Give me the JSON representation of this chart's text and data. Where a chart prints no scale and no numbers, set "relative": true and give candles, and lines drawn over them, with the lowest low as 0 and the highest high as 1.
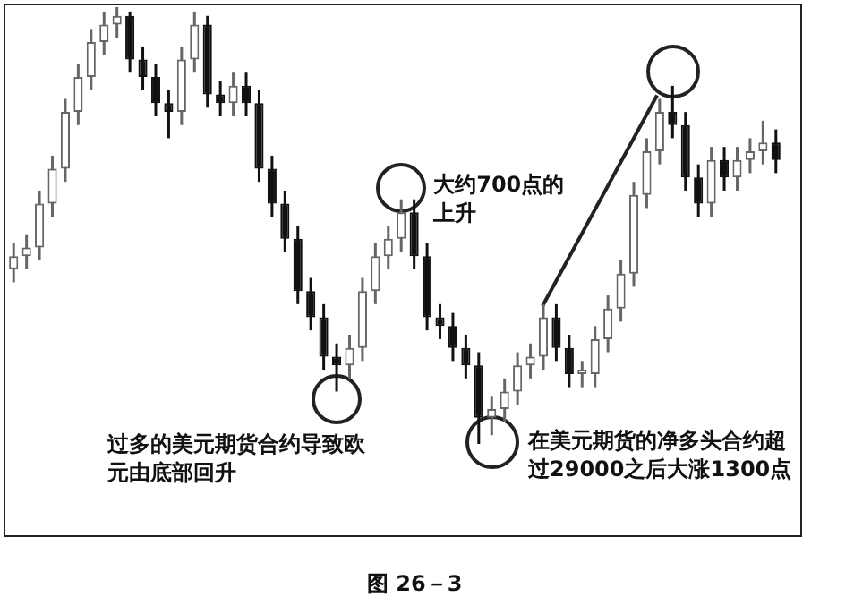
{
  "chart_data": {
    "type": "candlestick",
    "relative": true,
    "colors": [
      "#666666",
      "#666666",
      "#666666",
      "#666666",
      "#666666",
      "#666666",
      "#666666",
      "#666666",
      "#666666",
      "#111111",
      "#111111",
      "#111111",
      "#111111",
      "#666666",
      "#666666",
      "#111111",
      "#111111",
      "#666666",
      "#111111",
      "#111111",
      "#111111",
      "#111111",
      "#111111",
      "#111111",
      "#111111",
      "#111111",
      "#666666",
      "#666666",
      "#666666",
      "#666666",
      "#666666",
      "#111111",
      "#111111",
      "#111111",
      "#111111",
      "#111111",
      "#111111",
      "#666666",
      "#666666",
      "#666666",
      "#666666",
      "#666666",
      "#111111",
      "#111111",
      "#666666",
      "#666666",
      "#666666",
      "#666666",
      "#666666",
      "#666666",
      "#666666",
      "#111111",
      "#111111",
      "#111111",
      "#666666",
      "#111111",
      "#666666",
      "#666666",
      "#666666",
      "#111111"
    ],
    "legend": false,
    "categories": [
      null,
      null,
      null,
      null,
      null,
      null,
      null,
      null,
      null,
      null,
      null,
      null,
      null,
      null,
      null,
      null,
      null,
      null,
      null,
      null,
      null,
      null,
      null,
      null,
      null,
      null,
      null,
      null,
      null,
      null,
      null,
      null,
      null,
      null,
      null,
      null,
      null,
      null,
      null,
      null,
      null,
      null,
      null,
      null,
      null,
      null,
      null,
      null,
      null,
      null,
      null,
      null,
      null,
      null,
      null,
      null,
      null,
      null,
      null,
      null
    ],
    "ohlc": [
      [
        0.4,
        0.46,
        0.37,
        0.43
      ],
      [
        0.43,
        0.48,
        0.4,
        0.45
      ],
      [
        0.45,
        0.58,
        0.42,
        0.55
      ],
      [
        0.55,
        0.66,
        0.52,
        0.63
      ],
      [
        0.63,
        0.79,
        0.6,
        0.76
      ],
      [
        0.76,
        0.87,
        0.73,
        0.84
      ],
      [
        0.84,
        0.95,
        0.81,
        0.92
      ],
      [
        0.92,
        0.99,
        0.89,
        0.96
      ],
      [
        0.96,
        1,
        0.93,
        0.98
      ],
      [
        0.98,
        0.99,
        0.85,
        0.88
      ],
      [
        0.88,
        0.91,
        0.81,
        0.84
      ],
      [
        0.84,
        0.87,
        0.75,
        0.78
      ],
      [
        0.78,
        0.81,
        0.7,
        0.76
      ],
      [
        0.76,
        0.91,
        0.73,
        0.88
      ],
      [
        0.88,
        0.99,
        0.85,
        0.96
      ],
      [
        0.96,
        0.98,
        0.77,
        0.8
      ],
      [
        0.8,
        0.83,
        0.75,
        0.78
      ],
      [
        0.78,
        0.85,
        0.75,
        0.82
      ],
      [
        0.82,
        0.85,
        0.75,
        0.78
      ],
      [
        0.78,
        0.81,
        0.6,
        0.63
      ],
      [
        0.63,
        0.66,
        0.52,
        0.55
      ],
      [
        0.55,
        0.58,
        0.44,
        0.47
      ],
      [
        0.47,
        0.5,
        0.32,
        0.35
      ],
      [
        0.35,
        0.38,
        0.26,
        0.29
      ],
      [
        0.29,
        0.32,
        0.17,
        0.2
      ],
      [
        0.2,
        0.23,
        0.12,
        0.18
      ],
      [
        0.18,
        0.25,
        0.15,
        0.22
      ],
      [
        0.22,
        0.38,
        0.19,
        0.35
      ],
      [
        0.35,
        0.46,
        0.32,
        0.43
      ],
      [
        0.43,
        0.5,
        0.4,
        0.47
      ],
      [
        0.47,
        0.56,
        0.44,
        0.53
      ],
      [
        0.53,
        0.56,
        0.4,
        0.43
      ],
      [
        0.43,
        0.46,
        0.26,
        0.29
      ],
      [
        0.29,
        0.32,
        0.24,
        0.27
      ],
      [
        0.27,
        0.3,
        0.19,
        0.22
      ],
      [
        0.22,
        0.25,
        0.15,
        0.18
      ],
      [
        0.18,
        0.21,
        0,
        0.06
      ],
      [
        0.06,
        0.11,
        0.02,
        0.08
      ],
      [
        0.08,
        0.15,
        0.05,
        0.12
      ],
      [
        0.12,
        0.21,
        0.09,
        0.18
      ],
      [
        0.18,
        0.23,
        0.15,
        0.2
      ],
      [
        0.2,
        0.32,
        0.17,
        0.29
      ],
      [
        0.29,
        0.32,
        0.19,
        0.22
      ],
      [
        0.22,
        0.25,
        0.13,
        0.16
      ],
      [
        0.16,
        0.19,
        0.13,
        0.17
      ],
      [
        0.16,
        0.27,
        0.13,
        0.24
      ],
      [
        0.24,
        0.34,
        0.21,
        0.31
      ],
      [
        0.31,
        0.42,
        0.28,
        0.39
      ],
      [
        0.39,
        0.6,
        0.36,
        0.57
      ],
      [
        0.57,
        0.7,
        0.54,
        0.67
      ],
      [
        0.67,
        0.79,
        0.64,
        0.76
      ],
      [
        0.76,
        0.82,
        0.7,
        0.73
      ],
      [
        0.73,
        0.76,
        0.58,
        0.61
      ],
      [
        0.61,
        0.64,
        0.52,
        0.55
      ],
      [
        0.55,
        0.68,
        0.52,
        0.65
      ],
      [
        0.65,
        0.68,
        0.58,
        0.61
      ],
      [
        0.61,
        0.68,
        0.58,
        0.65
      ],
      [
        0.65,
        0.7,
        0.62,
        0.67
      ],
      [
        0.67,
        0.74,
        0.64,
        0.69
      ],
      [
        0.69,
        0.72,
        0.62,
        0.65
      ]
    ],
    "annotations": [
      "大约700点的上升",
      "过多的美元期货合约导致欧元由底部回升",
      "在美元期货的净多头合约超过29000之后大涨1300点",
      "图 26－3"
    ]
  }
}
